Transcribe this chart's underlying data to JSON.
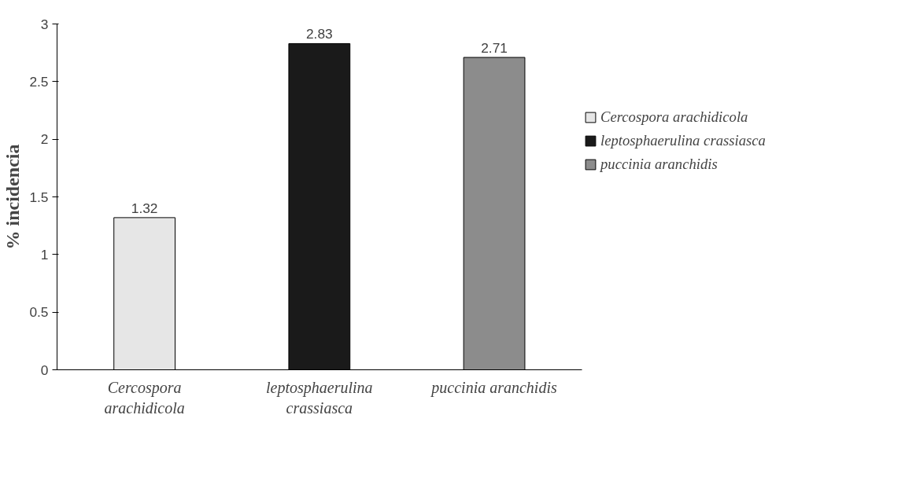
{
  "chart_data": {
    "type": "bar",
    "ylabel": "% incidencia",
    "categories": [
      "Cercospora\narachidicola",
      "leptosphaerulina\ncrassiasca",
      "puccinia aranchidis"
    ],
    "series": [
      {
        "name": "Cercospora arachidicola",
        "color": "#e6e6e6",
        "values": [
          1.32,
          null,
          null
        ]
      },
      {
        "name": "leptosphaerulina crassiasca",
        "color": "#1a1a1a",
        "values": [
          null,
          2.83,
          null
        ]
      },
      {
        "name": "puccinia aranchidis",
        "color": "#8c8c8c",
        "values": [
          null,
          null,
          2.71
        ]
      }
    ],
    "ylim": [
      0,
      3
    ],
    "yticks": [
      0,
      0.5,
      1,
      1.5,
      2,
      2.5,
      3
    ],
    "data_labels": true,
    "grid": false,
    "legend": "right"
  }
}
